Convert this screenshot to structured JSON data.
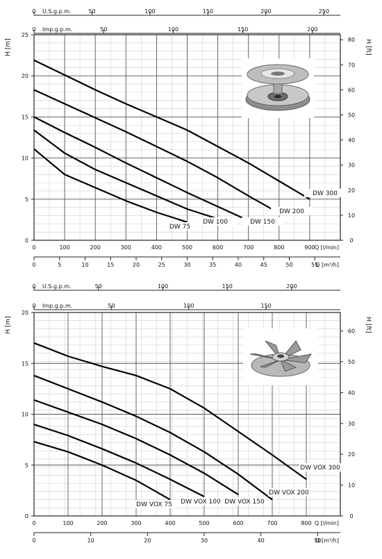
{
  "chart_data": [
    {
      "type": "line",
      "title": "",
      "ylabel": "H [m]",
      "ylabel_right": "H [ft]",
      "ylim": [
        0,
        25
      ],
      "yticks": [
        "0",
        "5",
        "10",
        "15",
        "20",
        "25"
      ],
      "ylim_ft": [
        0,
        82
      ],
      "yticks_ft": [
        "0",
        "10",
        "20",
        "30",
        "40",
        "50",
        "60",
        "70",
        "80"
      ],
      "xlabel": "Q [l/min]",
      "xlim": [
        0,
        1000
      ],
      "xticks": [
        "0",
        "100",
        "200",
        "300",
        "400",
        "500",
        "600",
        "700",
        "800",
        "900"
      ],
      "xlabel_m3h": "Q [m³/h]",
      "xticks_m3h": [
        "0",
        "5",
        "10",
        "15",
        "20",
        "25",
        "30",
        "35",
        "40",
        "45",
        "50",
        "55"
      ],
      "top_axis_1_label": "U.S.g.p.m.",
      "top_axis_1_ticks": [
        "0",
        "50",
        "100",
        "150",
        "200",
        "250"
      ],
      "top_axis_2_label": "Imp.g.p.m.",
      "top_axis_2_ticks": [
        "0",
        "50",
        "100",
        "150",
        "200"
      ],
      "grid": true,
      "image": "impeller-photo",
      "series": [
        {
          "name": "DW 75",
          "x": [
            0,
            100,
            200,
            300,
            400,
            500
          ],
          "y": [
            11.1,
            8,
            6.4,
            4.8,
            3.4,
            2.2
          ]
        },
        {
          "name": "DW 100",
          "x": [
            0,
            100,
            200,
            300,
            400,
            500,
            600
          ],
          "y": [
            13.4,
            10.6,
            8.6,
            7,
            5.4,
            3.8,
            2.6
          ]
        },
        {
          "name": "DW 150",
          "x": [
            0,
            100,
            200,
            300,
            400,
            500,
            600,
            700
          ],
          "y": [
            15,
            13.1,
            11.3,
            9.4,
            7.6,
            5.8,
            4.1,
            2.4
          ]
        },
        {
          "name": "DW 200",
          "x": [
            0,
            100,
            200,
            300,
            400,
            500,
            600,
            700,
            800
          ],
          "y": [
            18.3,
            16.6,
            14.9,
            13.2,
            11.4,
            9.6,
            7.6,
            5.4,
            3.3
          ]
        },
        {
          "name": "DW 300",
          "x": [
            0,
            100,
            200,
            300,
            400,
            500,
            600,
            700,
            800,
            900
          ],
          "y": [
            21.9,
            20.1,
            18.3,
            16.6,
            15,
            13.4,
            11.4,
            9.4,
            7.2,
            5
          ]
        }
      ]
    },
    {
      "type": "line",
      "title": "",
      "ylabel": "H [m]",
      "ylabel_right": "H [ft]",
      "ylim": [
        0,
        20
      ],
      "yticks": [
        "0",
        "5",
        "10",
        "15",
        "20"
      ],
      "ylim_ft": [
        0,
        66
      ],
      "yticks_ft": [
        "0",
        "10",
        "20",
        "30",
        "40",
        "50",
        "60"
      ],
      "xlabel": "Q [l/min]",
      "xlim": [
        0,
        900
      ],
      "xticks": [
        "0",
        "100",
        "200",
        "300",
        "400",
        "500",
        "600",
        "700",
        "800"
      ],
      "xlabel_m3h": "Q [m³/h]",
      "xticks_m3h": [
        "0",
        "10",
        "20",
        "30",
        "40",
        "50"
      ],
      "top_axis_1_label": "U.S.g.p.m.",
      "top_axis_1_ticks": [
        "0",
        "50",
        "100",
        "150",
        "200"
      ],
      "top_axis_2_label": "Imp.g.p.m.",
      "top_axis_2_ticks": [
        "0",
        "50",
        "100",
        "150"
      ],
      "grid": true,
      "image": "vortex-impeller-photo",
      "series": [
        {
          "name": "DW VOX 75",
          "x": [
            0,
            100,
            200,
            300,
            400
          ],
          "y": [
            7.3,
            6.3,
            5,
            3.5,
            1.6
          ]
        },
        {
          "name": "DW VOX 100",
          "x": [
            0,
            100,
            200,
            300,
            400,
            500
          ],
          "y": [
            9,
            7.9,
            6.6,
            5.2,
            3.6,
            1.9
          ]
        },
        {
          "name": "DW VOX 150",
          "x": [
            0,
            100,
            200,
            300,
            400,
            500,
            600
          ],
          "y": [
            11.4,
            10.2,
            9,
            7.6,
            6,
            4.2,
            2.1
          ]
        },
        {
          "name": "DW VOX 200",
          "x": [
            0,
            100,
            200,
            300,
            400,
            500,
            600,
            700
          ],
          "y": [
            13.8,
            12.5,
            11.2,
            9.8,
            8.2,
            6.3,
            4.1,
            1.6
          ]
        },
        {
          "name": "DW VOX 300",
          "x": [
            0,
            100,
            200,
            300,
            400,
            500,
            600,
            700,
            800
          ],
          "y": [
            17,
            15.7,
            14.7,
            13.8,
            12.5,
            10.6,
            8.3,
            6,
            3.6
          ]
        }
      ]
    }
  ]
}
